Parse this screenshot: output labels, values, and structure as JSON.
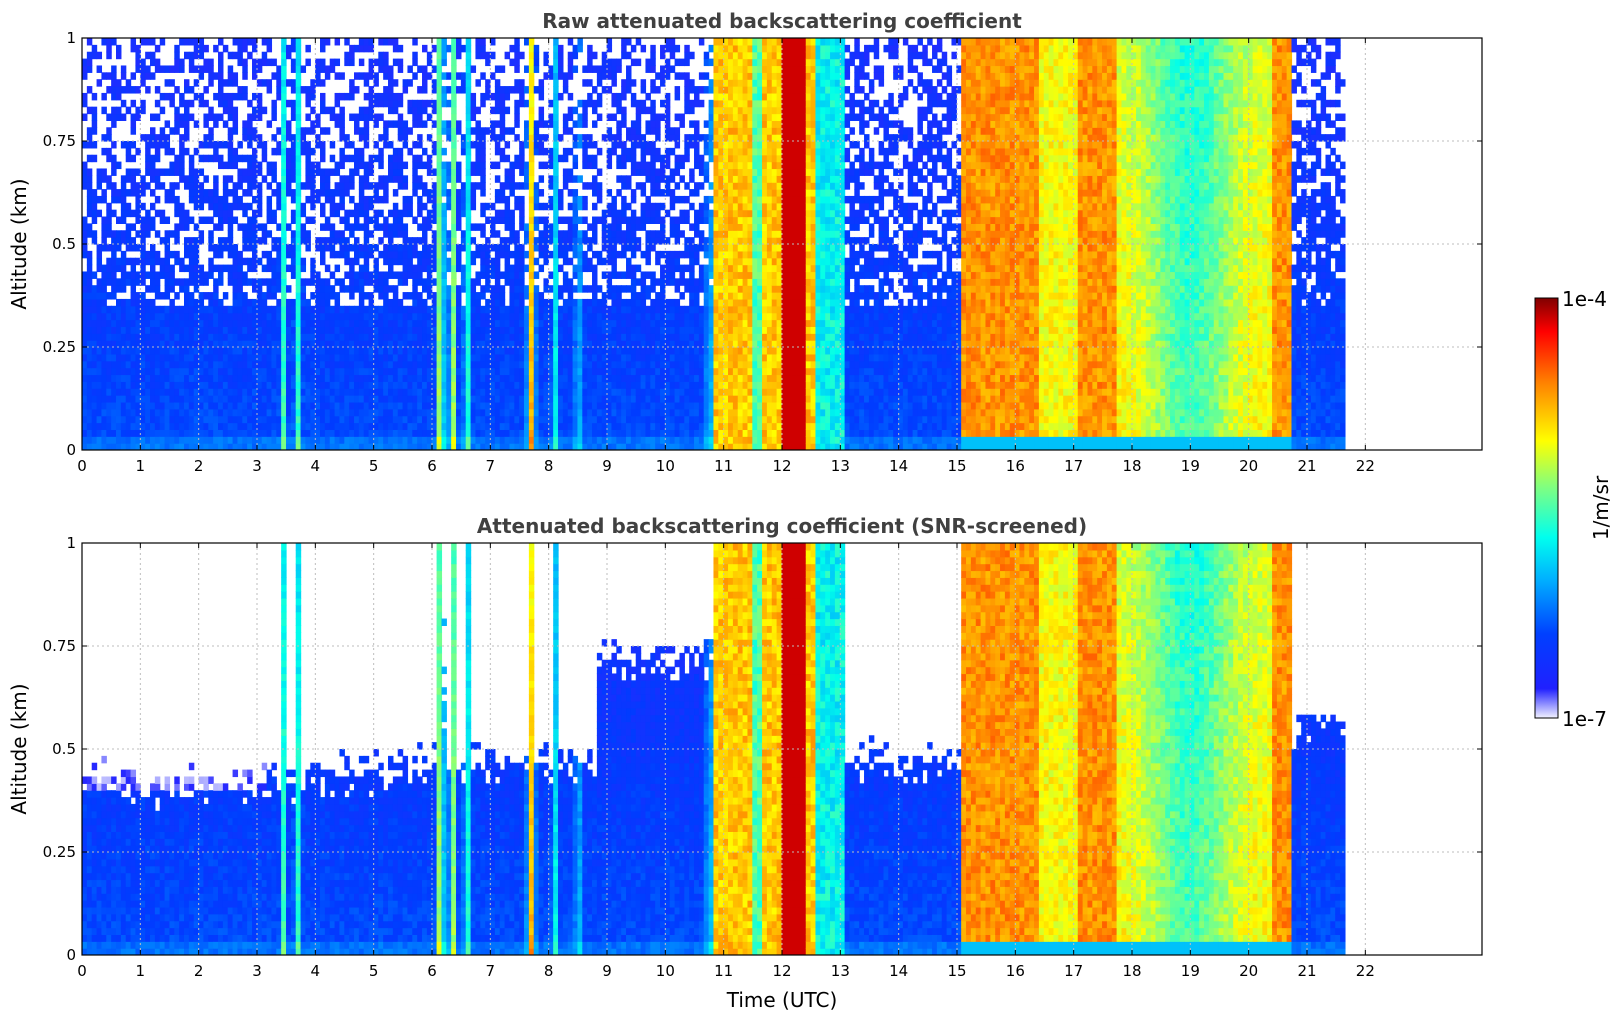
{
  "chart_data": [
    {
      "type": "heatmap",
      "title": "Raw attenuated backscattering coefficient",
      "xlabel": "",
      "ylabel": "Altitude (km)",
      "xlim": [
        0,
        24
      ],
      "ylim": [
        0,
        1
      ],
      "x_ticks": [
        0,
        1,
        2,
        3,
        4,
        5,
        6,
        7,
        8,
        9,
        10,
        11,
        12,
        13,
        14,
        15,
        16,
        17,
        18,
        19,
        20,
        21,
        22
      ],
      "y_ticks": [
        0,
        0.25,
        0.5,
        0.75,
        1
      ],
      "y_tick_labels": [
        "0",
        "0.25",
        "0.5",
        "0.75",
        "1"
      ],
      "grid": true,
      "data_extent_hours": [
        0,
        21.65
      ],
      "screened": false,
      "features": {
        "thin_cloud_columns_hours": [
          3.7,
          6.15,
          6.35,
          6.6,
          7.7,
          8.1,
          8.5
        ],
        "dense_cloud_intervals_hours": [
          [
            10.8,
            13.1
          ],
          [
            15.1,
            20.75
          ]
        ],
        "very_high_intervals_hours": [
          [
            12.0,
            12.4
          ]
        ]
      }
    },
    {
      "type": "heatmap",
      "title": "Attenuated backscattering coefficient (SNR-screened)",
      "xlabel": "Time (UTC)",
      "ylabel": "Altitude (km)",
      "xlim": [
        0,
        24
      ],
      "ylim": [
        0,
        1
      ],
      "x_ticks": [
        0,
        1,
        2,
        3,
        4,
        5,
        6,
        7,
        8,
        9,
        10,
        11,
        12,
        13,
        14,
        15,
        16,
        17,
        18,
        19,
        20,
        21,
        22
      ],
      "y_ticks": [
        0,
        0.25,
        0.5,
        0.75,
        1
      ],
      "y_tick_labels": [
        "0",
        "0.25",
        "0.5",
        "0.75",
        "1"
      ],
      "grid": true,
      "data_extent_hours": [
        0,
        21.65
      ],
      "screened": true,
      "features": {
        "thin_cloud_columns_hours": [
          3.7,
          6.15,
          6.35,
          6.6,
          7.7,
          8.1,
          8.5
        ],
        "dense_cloud_intervals_hours": [
          [
            10.8,
            13.1
          ],
          [
            15.1,
            20.75
          ]
        ],
        "very_high_intervals_hours": [
          [
            12.0,
            12.4
          ]
        ]
      }
    }
  ],
  "colorbar": {
    "label": "1/m/sr",
    "min_label": "1e-7",
    "max_label": "1e-4",
    "scale": "log",
    "colormap": [
      "#f2f2ff",
      "#0000ff",
      "#00aaff",
      "#00ffff",
      "#80ff80",
      "#ffff00",
      "#ff8000",
      "#ff0000",
      "#800000"
    ]
  }
}
